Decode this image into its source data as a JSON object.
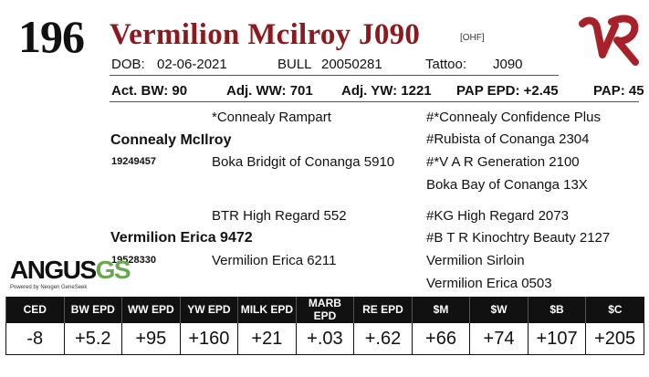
{
  "lot_number": "196",
  "animal_name": "Vermilion Mcilroy J090",
  "tag": "[OHF]",
  "dob_label": "DOB:",
  "dob": "02-06-2021",
  "sex_label": "BULL",
  "registration": "20050281",
  "tattoo_label": "Tattoo:",
  "tattoo": "J090",
  "stats": {
    "act_bw": "Act. BW: 90",
    "adj_ww": "Adj. WW: 701",
    "adj_yw": "Adj. YW: 1221",
    "pap_epd": "PAP EPD: +2.45",
    "pap": "PAP: 45"
  },
  "pedigree": {
    "sire": {
      "name": "Connealy McIlroy",
      "reg": "19249457",
      "sire": "*Connealy Rampart",
      "dam": "Boka Bridgit of Conanga 5910",
      "sire_sire": "#*Connealy Confidence Plus",
      "sire_dam": "#Rubista of Conanga 2304",
      "dam_sire": "#*V A R Generation 2100",
      "dam_dam": "Boka Bay of Conanga 13X"
    },
    "dam": {
      "name": "Vermilion Erica 9472",
      "reg": "19528330",
      "sire": "BTR High Regard 552",
      "dam": "Vermilion Erica 6211",
      "sire_sire": "#KG High Regard 2073",
      "sire_dam": "#B T R Kinochtry Beauty 2127",
      "dam_sire": "Vermilion Sirloin",
      "dam_dam": "Vermilion Erica 0503"
    }
  },
  "angus_logo": {
    "word": "ANGUS",
    "gs": "GS",
    "tagline": "Powered by Neogen GeneSeek"
  },
  "brand_logo": {
    "letters": "VR",
    "color": "#a8202a"
  },
  "epd_table": {
    "headers": [
      "CED",
      "BW EPD",
      "WW EPD",
      "YW EPD",
      "MILK EPD",
      "MARB EPD",
      "RE EPD",
      "$M",
      "$W",
      "$B",
      "$C"
    ],
    "values": [
      "-8",
      "+5.2",
      "+95",
      "+160",
      "+21",
      "+.03",
      "+.62",
      "+66",
      "+74",
      "+107",
      "+205"
    ]
  }
}
